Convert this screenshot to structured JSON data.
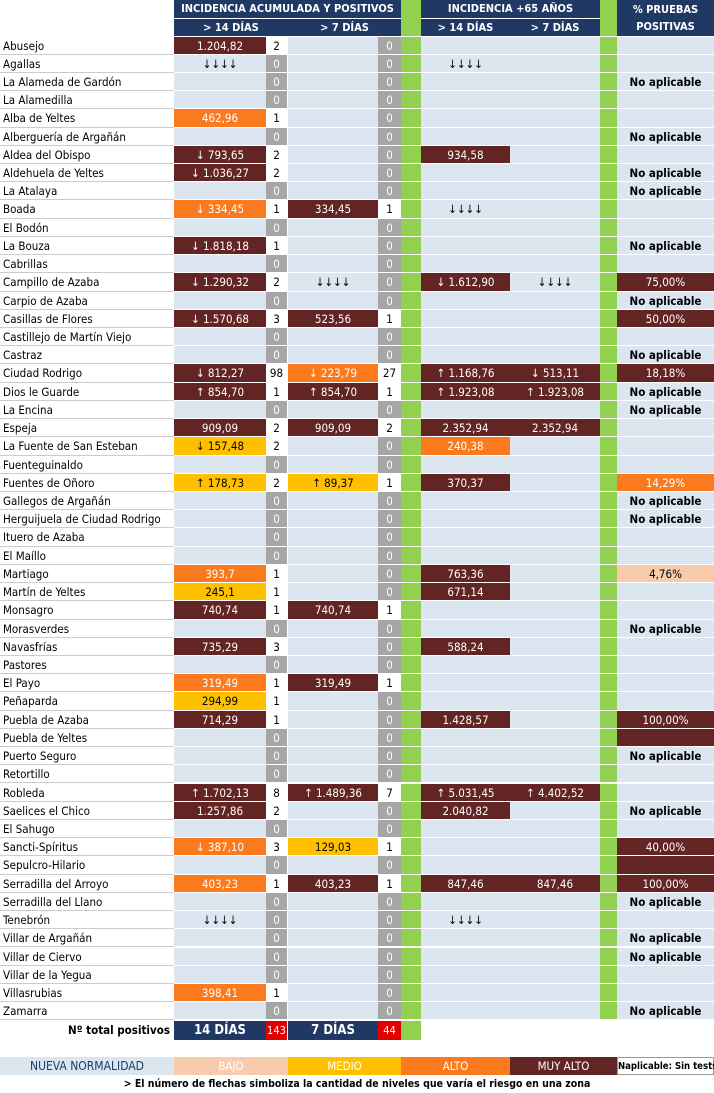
{
  "header": {
    "group1": "INCIDENCIA ACUMULADA Y POSITIVOS",
    "group2": "INCIDENCIA +65 AÑOS",
    "group3_line1": "% PRUEBAS",
    "group3_line2": "POSITIVAS",
    "sub_14": "> 14 DÍAS",
    "sub_7": "> 7 DÍAS",
    "sub65_14": "> 14 DÍAS",
    "sub65_7": "> 7 DÍAS"
  },
  "colors": {
    "header_bg": "#1f3864",
    "separator_green": "#92d050",
    "none": "#dce6f1",
    "bajo": "#f8cbad",
    "medio": "#ffc000",
    "alto": "#fc7a1e",
    "muy_alto": "#632523",
    "zero_count": "#a6a6a6",
    "total_count_red": "#e00000"
  },
  "rows": [
    {
      "name": "Abusejo",
      "v14": "1.204,82",
      "l14": "muyalto",
      "n14": "2",
      "v7": "",
      "l7": "none",
      "n7": "0",
      "e14": "",
      "le14": "none",
      "e7": "",
      "le7": "none",
      "pct": "",
      "lp": "none"
    },
    {
      "name": "Agallas",
      "v14": "↓↓↓↓",
      "l14": "none",
      "n14": "0",
      "v7": "",
      "l7": "none",
      "n7": "0",
      "e14": "↓↓↓↓",
      "le14": "none",
      "e7": "",
      "le7": "none",
      "pct": "",
      "lp": "none"
    },
    {
      "name": "La Alameda de Gardón",
      "v14": "",
      "l14": "none",
      "n14": "0",
      "v7": "",
      "l7": "none",
      "n7": "0",
      "e14": "",
      "le14": "none",
      "e7": "",
      "le7": "none",
      "pct": "No aplicable",
      "lp": "na"
    },
    {
      "name": "La Alamedilla",
      "v14": "",
      "l14": "none",
      "n14": "0",
      "v7": "",
      "l7": "none",
      "n7": "0",
      "e14": "",
      "le14": "none",
      "e7": "",
      "le7": "none",
      "pct": "",
      "lp": "none"
    },
    {
      "name": "Alba de Yeltes",
      "v14": "462,96",
      "l14": "alto",
      "n14": "1",
      "v7": "",
      "l7": "none",
      "n7": "0",
      "e14": "",
      "le14": "none",
      "e7": "",
      "le7": "none",
      "pct": "",
      "lp": "none"
    },
    {
      "name": "Alberguería de Argañán",
      "v14": "",
      "l14": "none",
      "n14": "0",
      "v7": "",
      "l7": "none",
      "n7": "0",
      "e14": "",
      "le14": "none",
      "e7": "",
      "le7": "none",
      "pct": "No aplicable",
      "lp": "na"
    },
    {
      "name": "Aldea del Obispo",
      "v14": "↓ 793,65",
      "l14": "muyalto",
      "n14": "2",
      "v7": "",
      "l7": "none",
      "n7": "0",
      "e14": "934,58",
      "le14": "muyalto",
      "e7": "",
      "le7": "none",
      "pct": "",
      "lp": "none"
    },
    {
      "name": "Aldehuela de Yeltes",
      "v14": "↓ 1.036,27",
      "l14": "muyalto",
      "n14": "2",
      "v7": "",
      "l7": "none",
      "n7": "0",
      "e14": "",
      "le14": "none",
      "e7": "",
      "le7": "none",
      "pct": "No aplicable",
      "lp": "na"
    },
    {
      "name": "La Atalaya",
      "v14": "",
      "l14": "none",
      "n14": "0",
      "v7": "",
      "l7": "none",
      "n7": "0",
      "e14": "",
      "le14": "none",
      "e7": "",
      "le7": "none",
      "pct": "No aplicable",
      "lp": "na"
    },
    {
      "name": "Boada",
      "v14": "↓ 334,45",
      "l14": "alto",
      "n14": "1",
      "v7": "334,45",
      "l7": "muyalto",
      "n7": "1",
      "e14": "↓↓↓↓",
      "le14": "none",
      "e7": "",
      "le7": "none",
      "pct": "",
      "lp": "none"
    },
    {
      "name": "El Bodón",
      "v14": "",
      "l14": "none",
      "n14": "0",
      "v7": "",
      "l7": "none",
      "n7": "0",
      "e14": "",
      "le14": "none",
      "e7": "",
      "le7": "none",
      "pct": "",
      "lp": "none"
    },
    {
      "name": "La Bouza",
      "v14": "↓ 1.818,18",
      "l14": "muyalto",
      "n14": "1",
      "v7": "",
      "l7": "none",
      "n7": "0",
      "e14": "",
      "le14": "none",
      "e7": "",
      "le7": "none",
      "pct": "No aplicable",
      "lp": "na"
    },
    {
      "name": "Cabrillas",
      "v14": "",
      "l14": "none",
      "n14": "0",
      "v7": "",
      "l7": "none",
      "n7": "0",
      "e14": "",
      "le14": "none",
      "e7": "",
      "le7": "none",
      "pct": "",
      "lp": "none"
    },
    {
      "name": "Campillo de Azaba",
      "v14": "↓ 1.290,32",
      "l14": "muyalto",
      "n14": "2",
      "v7": "↓↓↓↓",
      "l7": "none",
      "n7": "0",
      "e14": "↓ 1.612,90",
      "le14": "muyalto",
      "e7": "↓↓↓↓",
      "le7": "none",
      "pct": "75,00%",
      "lp": "muyalto"
    },
    {
      "name": "Carpio de Azaba",
      "v14": "",
      "l14": "none",
      "n14": "0",
      "v7": "",
      "l7": "none",
      "n7": "0",
      "e14": "",
      "le14": "none",
      "e7": "",
      "le7": "none",
      "pct": "No aplicable",
      "lp": "na"
    },
    {
      "name": "Casillas de Flores",
      "v14": "↓ 1.570,68",
      "l14": "muyalto",
      "n14": "3",
      "v7": "523,56",
      "l7": "muyalto",
      "n7": "1",
      "e14": "",
      "le14": "none",
      "e7": "",
      "le7": "none",
      "pct": "50,00%",
      "lp": "muyalto"
    },
    {
      "name": "Castillejo de Martín Viejo",
      "v14": "",
      "l14": "none",
      "n14": "0",
      "v7": "",
      "l7": "none",
      "n7": "0",
      "e14": "",
      "le14": "none",
      "e7": "",
      "le7": "none",
      "pct": "",
      "lp": "none"
    },
    {
      "name": "Castraz",
      "v14": "",
      "l14": "none",
      "n14": "0",
      "v7": "",
      "l7": "none",
      "n7": "0",
      "e14": "",
      "le14": "none",
      "e7": "",
      "le7": "none",
      "pct": "No aplicable",
      "lp": "na"
    },
    {
      "name": "Ciudad Rodrigo",
      "v14": "↓ 812,27",
      "l14": "muyalto",
      "n14": "98",
      "v7": "↓ 223,79",
      "l7": "alto",
      "n7": "27",
      "e14": "↑ 1.168,76",
      "le14": "muyalto",
      "e7": "↓ 513,11",
      "le7": "muyalto",
      "pct": "18,18%",
      "lp": "muyalto"
    },
    {
      "name": "Dios le Guarde",
      "v14": "↑ 854,70",
      "l14": "muyalto",
      "n14": "1",
      "v7": "↑ 854,70",
      "l7": "muyalto",
      "n7": "1",
      "e14": "↑ 1.923,08",
      "le14": "muyalto",
      "e7": "↑ 1.923,08",
      "le7": "muyalto",
      "pct": "No aplicable",
      "lp": "na"
    },
    {
      "name": "La Encina",
      "v14": "",
      "l14": "none",
      "n14": "0",
      "v7": "",
      "l7": "none",
      "n7": "0",
      "e14": "",
      "le14": "none",
      "e7": "",
      "le7": "none",
      "pct": "No aplicable",
      "lp": "na"
    },
    {
      "name": "Espeja",
      "v14": "909,09",
      "l14": "muyalto",
      "n14": "2",
      "v7": "909,09",
      "l7": "muyalto",
      "n7": "2",
      "e14": "2.352,94",
      "le14": "muyalto",
      "e7": "2.352,94",
      "le7": "muyalto",
      "pct": "",
      "lp": "none"
    },
    {
      "name": "La Fuente de San Esteban",
      "v14": "↓ 157,48",
      "l14": "medio",
      "n14": "2",
      "v7": "",
      "l7": "none",
      "n7": "0",
      "e14": "240,38",
      "le14": "alto",
      "e7": "",
      "le7": "none",
      "pct": "",
      "lp": "none"
    },
    {
      "name": "Fuenteguinaldo",
      "v14": "",
      "l14": "none",
      "n14": "0",
      "v7": "",
      "l7": "none",
      "n7": "0",
      "e14": "",
      "le14": "none",
      "e7": "",
      "le7": "none",
      "pct": "",
      "lp": "none"
    },
    {
      "name": "Fuentes de Oñoro",
      "v14": "↑ 178,73",
      "l14": "medio",
      "n14": "2",
      "v7": "↑ 89,37",
      "l7": "medio",
      "n7": "1",
      "e14": "370,37",
      "le14": "muyalto",
      "e7": "",
      "le7": "none",
      "pct": "14,29%",
      "lp": "alto"
    },
    {
      "name": "Gallegos de Argañán",
      "v14": "",
      "l14": "none",
      "n14": "0",
      "v7": "",
      "l7": "none",
      "n7": "0",
      "e14": "",
      "le14": "none",
      "e7": "",
      "le7": "none",
      "pct": "No aplicable",
      "lp": "na"
    },
    {
      "name": "Herguijuela de Ciudad Rodrigo",
      "v14": "",
      "l14": "none",
      "n14": "0",
      "v7": "",
      "l7": "none",
      "n7": "0",
      "e14": "",
      "le14": "none",
      "e7": "",
      "le7": "none",
      "pct": "No aplicable",
      "lp": "na"
    },
    {
      "name": "Ituero de Azaba",
      "v14": "",
      "l14": "none",
      "n14": "0",
      "v7": "",
      "l7": "none",
      "n7": "0",
      "e14": "",
      "le14": "none",
      "e7": "",
      "le7": "none",
      "pct": "",
      "lp": "none"
    },
    {
      "name": "El Maíllo",
      "v14": "",
      "l14": "none",
      "n14": "0",
      "v7": "",
      "l7": "none",
      "n7": "0",
      "e14": "",
      "le14": "none",
      "e7": "",
      "le7": "none",
      "pct": "",
      "lp": "none"
    },
    {
      "name": "Martiago",
      "v14": "393,7",
      "l14": "alto",
      "n14": "1",
      "v7": "",
      "l7": "none",
      "n7": "0",
      "e14": "763,36",
      "le14": "muyalto",
      "e7": "",
      "le7": "none",
      "pct": "4,76%",
      "lp": "bajo"
    },
    {
      "name": "Martín de Yeltes",
      "v14": "245,1",
      "l14": "medio",
      "n14": "1",
      "v7": "",
      "l7": "none",
      "n7": "0",
      "e14": "671,14",
      "le14": "muyalto",
      "e7": "",
      "le7": "none",
      "pct": "",
      "lp": "none"
    },
    {
      "name": "Monsagro",
      "v14": "740,74",
      "l14": "muyalto",
      "n14": "1",
      "v7": "740,74",
      "l7": "muyalto",
      "n7": "1",
      "e14": "",
      "le14": "none",
      "e7": "",
      "le7": "none",
      "pct": "",
      "lp": "none"
    },
    {
      "name": "Morasverdes",
      "v14": "",
      "l14": "none",
      "n14": "0",
      "v7": "",
      "l7": "none",
      "n7": "0",
      "e14": "",
      "le14": "none",
      "e7": "",
      "le7": "none",
      "pct": "No aplicable",
      "lp": "na"
    },
    {
      "name": "Navasfrías",
      "v14": "735,29",
      "l14": "muyalto",
      "n14": "3",
      "v7": "",
      "l7": "none",
      "n7": "0",
      "e14": "588,24",
      "le14": "muyalto",
      "e7": "",
      "le7": "none",
      "pct": "",
      "lp": "none"
    },
    {
      "name": "Pastores",
      "v14": "",
      "l14": "none",
      "n14": "0",
      "v7": "",
      "l7": "none",
      "n7": "0",
      "e14": "",
      "le14": "none",
      "e7": "",
      "le7": "none",
      "pct": "",
      "lp": "none"
    },
    {
      "name": "El Payo",
      "v14": "319,49",
      "l14": "alto",
      "n14": "1",
      "v7": "319,49",
      "l7": "muyalto",
      "n7": "1",
      "e14": "",
      "le14": "none",
      "e7": "",
      "le7": "none",
      "pct": "",
      "lp": "none"
    },
    {
      "name": "Peñaparda",
      "v14": "294,99",
      "l14": "medio",
      "n14": "1",
      "v7": "",
      "l7": "none",
      "n7": "0",
      "e14": "",
      "le14": "none",
      "e7": "",
      "le7": "none",
      "pct": "",
      "lp": "none"
    },
    {
      "name": "Puebla de Azaba",
      "v14": "714,29",
      "l14": "muyalto",
      "n14": "1",
      "v7": "",
      "l7": "none",
      "n7": "0",
      "e14": "1.428,57",
      "le14": "muyalto",
      "e7": "",
      "le7": "none",
      "pct": "100,00%",
      "lp": "muyalto"
    },
    {
      "name": "Puebla de Yeltes",
      "v14": "",
      "l14": "none",
      "n14": "0",
      "v7": "",
      "l7": "none",
      "n7": "0",
      "e14": "",
      "le14": "none",
      "e7": "",
      "le7": "none",
      "pct": "",
      "lp": "muyalto"
    },
    {
      "name": "Puerto Seguro",
      "v14": "",
      "l14": "none",
      "n14": "0",
      "v7": "",
      "l7": "none",
      "n7": "0",
      "e14": "",
      "le14": "none",
      "e7": "",
      "le7": "none",
      "pct": "No aplicable",
      "lp": "na"
    },
    {
      "name": "Retortillo",
      "v14": "",
      "l14": "none",
      "n14": "0",
      "v7": "",
      "l7": "none",
      "n7": "0",
      "e14": "",
      "le14": "none",
      "e7": "",
      "le7": "none",
      "pct": "",
      "lp": "none"
    },
    {
      "name": "Robleda",
      "v14": "↑ 1.702,13",
      "l14": "muyalto",
      "n14": "8",
      "v7": "↑ 1.489,36",
      "l7": "muyalto",
      "n7": "7",
      "e14": "↑ 5.031,45",
      "le14": "muyalto",
      "e7": "↑ 4.402,52",
      "le7": "muyalto",
      "pct": "",
      "lp": "none"
    },
    {
      "name": "Saelices el Chico",
      "v14": "1.257,86",
      "l14": "muyalto",
      "n14": "2",
      "v7": "",
      "l7": "none",
      "n7": "0",
      "e14": "2.040,82",
      "le14": "muyalto",
      "e7": "",
      "le7": "none",
      "pct": "No aplicable",
      "lp": "na"
    },
    {
      "name": "El Sahugo",
      "v14": "",
      "l14": "none",
      "n14": "0",
      "v7": "",
      "l7": "none",
      "n7": "0",
      "e14": "",
      "le14": "none",
      "e7": "",
      "le7": "none",
      "pct": "",
      "lp": "none"
    },
    {
      "name": "Sancti-Spíritus",
      "v14": "↓ 387,10",
      "l14": "alto",
      "n14": "3",
      "v7": "129,03",
      "l7": "medio",
      "n7": "1",
      "e14": "",
      "le14": "none",
      "e7": "",
      "le7": "none",
      "pct": "40,00%",
      "lp": "muyalto"
    },
    {
      "name": "Sepulcro-Hilario",
      "v14": "",
      "l14": "none",
      "n14": "0",
      "v7": "",
      "l7": "none",
      "n7": "0",
      "e14": "",
      "le14": "none",
      "e7": "",
      "le7": "none",
      "pct": "",
      "lp": "muyalto"
    },
    {
      "name": "Serradilla del Arroyo",
      "v14": "403,23",
      "l14": "alto",
      "n14": "1",
      "v7": "403,23",
      "l7": "muyalto",
      "n7": "1",
      "e14": "847,46",
      "le14": "muyalto",
      "e7": "847,46",
      "le7": "muyalto",
      "pct": "100,00%",
      "lp": "muyalto"
    },
    {
      "name": "Serradilla del Llano",
      "v14": "",
      "l14": "none",
      "n14": "0",
      "v7": "",
      "l7": "none",
      "n7": "0",
      "e14": "",
      "le14": "none",
      "e7": "",
      "le7": "none",
      "pct": "No aplicable",
      "lp": "na"
    },
    {
      "name": "Tenebrón",
      "v14": "↓↓↓↓",
      "l14": "none",
      "n14": "0",
      "v7": "",
      "l7": "none",
      "n7": "0",
      "e14": "↓↓↓↓",
      "le14": "none",
      "e7": "",
      "le7": "none",
      "pct": "",
      "lp": "none"
    },
    {
      "name": "Villar de Argañán",
      "v14": "",
      "l14": "none",
      "n14": "0",
      "v7": "",
      "l7": "none",
      "n7": "0",
      "e14": "",
      "le14": "none",
      "e7": "",
      "le7": "none",
      "pct": "No aplicable",
      "lp": "na"
    },
    {
      "name": "Villar de Ciervo",
      "v14": "",
      "l14": "none",
      "n14": "0",
      "v7": "",
      "l7": "none",
      "n7": "0",
      "e14": "",
      "le14": "none",
      "e7": "",
      "le7": "none",
      "pct": "No aplicable",
      "lp": "na"
    },
    {
      "name": "Villar de la Yegua",
      "v14": "",
      "l14": "none",
      "n14": "0",
      "v7": "",
      "l7": "none",
      "n7": "0",
      "e14": "",
      "le14": "none",
      "e7": "",
      "le7": "none",
      "pct": "",
      "lp": "none"
    },
    {
      "name": "Villasrubias",
      "v14": "398,41",
      "l14": "alto",
      "n14": "1",
      "v7": "",
      "l7": "none",
      "n7": "0",
      "e14": "",
      "le14": "none",
      "e7": "",
      "le7": "none",
      "pct": "",
      "lp": "none"
    },
    {
      "name": "Zamarra",
      "v14": "",
      "l14": "none",
      "n14": "0",
      "v7": "",
      "l7": "none",
      "n7": "0",
      "e14": "",
      "le14": "none",
      "e7": "",
      "le7": "none",
      "pct": "No aplicable",
      "lp": "na"
    }
  ],
  "totals": {
    "label": "Nº total positivos",
    "label_14": "14 DÍAS",
    "count_14": "143",
    "label_7": "7 DÍAS",
    "count_7": "44"
  },
  "legend": {
    "nueva_normalidad": "NUEVA NORMALIDAD",
    "bajo": "BAJO",
    "medio": "MEDIO",
    "alto": "ALTO",
    "muy_alto": "MUY ALTO",
    "naplicable": "Naplicable: Sin tests"
  },
  "footnote": "> El número de flechas simboliza la cantidad de niveles que varía el riesgo en una zona"
}
